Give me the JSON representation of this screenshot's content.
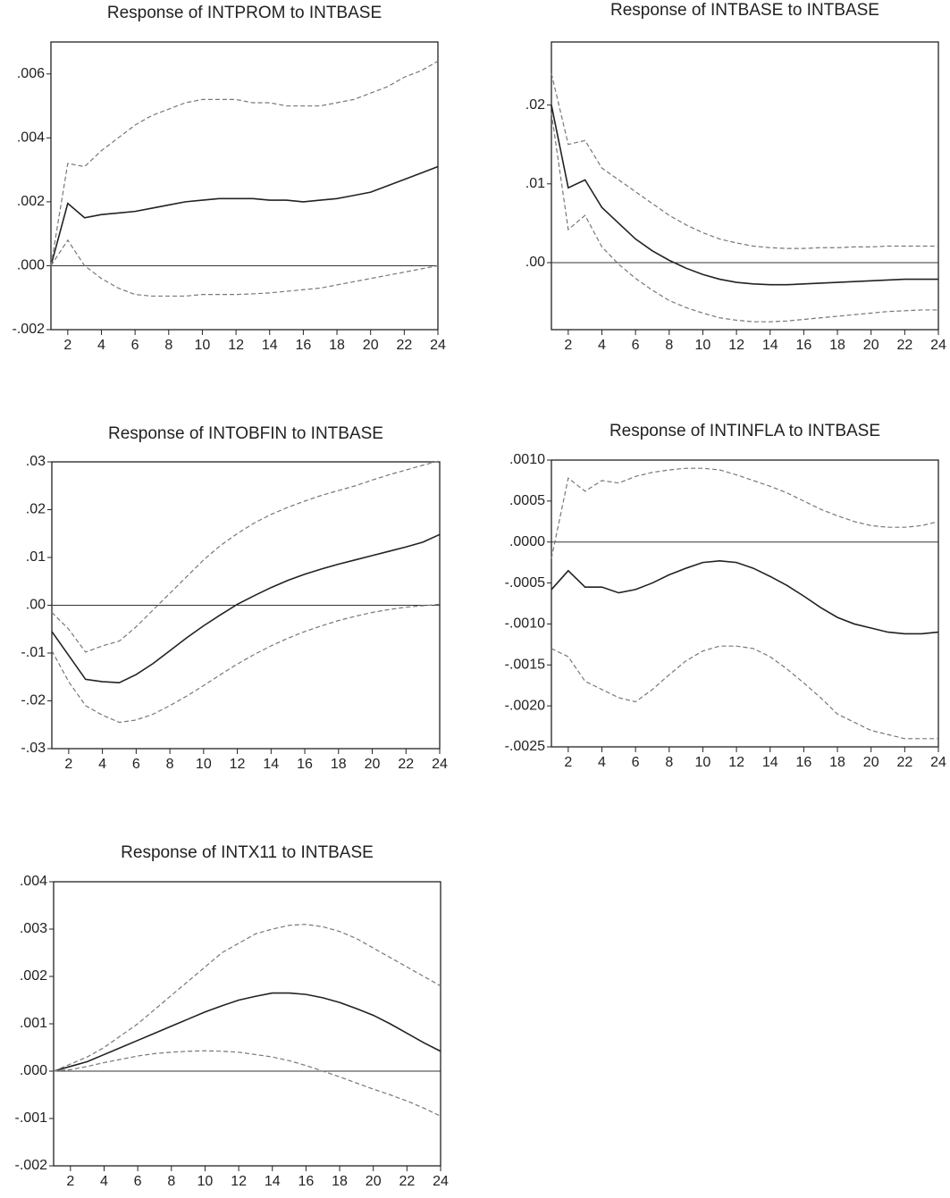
{
  "chart_data": [
    {
      "type": "line",
      "title": "Response of INTPROM to INTBASE",
      "x": [
        1,
        2,
        3,
        4,
        5,
        6,
        7,
        8,
        9,
        10,
        11,
        12,
        13,
        14,
        15,
        16,
        17,
        18,
        19,
        20,
        21,
        22,
        23,
        24
      ],
      "xlim": [
        1,
        24
      ],
      "xticks": [
        2,
        4,
        6,
        8,
        10,
        12,
        14,
        16,
        18,
        20,
        22,
        24
      ],
      "ylim": [
        -0.002,
        0.007
      ],
      "yticks": [
        {
          "value": -0.002,
          "label": "-.002"
        },
        {
          "value": 0,
          "label": ".000"
        },
        {
          "value": 0.002,
          "label": ".002"
        },
        {
          "value": 0.004,
          "label": ".004"
        },
        {
          "value": 0.006,
          "label": ".006"
        }
      ],
      "series": [
        {
          "color": "#222222",
          "style": "solid",
          "values": [
            0,
            0.00195,
            0.0015,
            0.0016,
            0.00165,
            0.0017,
            0.0018,
            0.0019,
            0.002,
            0.00205,
            0.0021,
            0.0021,
            0.0021,
            0.00205,
            0.00205,
            0.002,
            0.00205,
            0.0021,
            0.0022,
            0.0023,
            0.0025,
            0.0027,
            0.0029,
            0.0031
          ]
        },
        {
          "color": "#777777",
          "style": "dashed",
          "values": [
            0,
            0.0032,
            0.0031,
            0.0036,
            0.004,
            0.0044,
            0.0047,
            0.0049,
            0.0051,
            0.0052,
            0.0052,
            0.0052,
            0.0051,
            0.0051,
            0.005,
            0.005,
            0.005,
            0.0051,
            0.0052,
            0.0054,
            0.0056,
            0.0059,
            0.0061,
            0.0064
          ]
        },
        {
          "color": "#777777",
          "style": "dashed",
          "values": [
            0,
            0.0008,
            0,
            -0.0004,
            -0.0007,
            -0.0009,
            -0.00095,
            -0.00095,
            -0.00095,
            -0.0009,
            -0.0009,
            -0.0009,
            -0.00088,
            -0.00085,
            -0.0008,
            -0.00075,
            -0.0007,
            -0.0006,
            -0.0005,
            -0.0004,
            -0.0003,
            -0.0002,
            -0.0001,
            0
          ]
        }
      ]
    },
    {
      "type": "line",
      "title": "Response of INTBASE to INTBASE",
      "x": [
        1,
        2,
        3,
        4,
        5,
        6,
        7,
        8,
        9,
        10,
        11,
        12,
        13,
        14,
        15,
        16,
        17,
        18,
        19,
        20,
        21,
        22,
        23,
        24
      ],
      "xlim": [
        1,
        24
      ],
      "xticks": [
        2,
        4,
        6,
        8,
        10,
        12,
        14,
        16,
        18,
        20,
        22,
        24
      ],
      "ylim": [
        -0.0085,
        0.028
      ],
      "yticks": [
        {
          "value": 0,
          "label": ".00"
        },
        {
          "value": 0.01,
          "label": ".01"
        },
        {
          "value": 0.02,
          "label": ".02"
        }
      ],
      "series": [
        {
          "color": "#222222",
          "style": "solid",
          "values": [
            0.02,
            0.0095,
            0.0105,
            0.007,
            0.005,
            0.003,
            0.0015,
            0.0003,
            -0.0007,
            -0.0015,
            -0.0021,
            -0.0025,
            -0.0027,
            -0.0028,
            -0.0028,
            -0.0027,
            -0.0026,
            -0.0025,
            -0.0024,
            -0.0023,
            -0.0022,
            -0.0021,
            -0.0021,
            -0.0021
          ]
        },
        {
          "color": "#777777",
          "style": "dashed",
          "values": [
            0.024,
            0.015,
            0.0155,
            0.012,
            0.0105,
            0.009,
            0.0075,
            0.006,
            0.0048,
            0.0038,
            0.003,
            0.0025,
            0.0021,
            0.0019,
            0.0018,
            0.0018,
            0.0019,
            0.0019,
            0.002,
            0.002,
            0.0021,
            0.0021,
            0.0021,
            0.0021
          ]
        },
        {
          "color": "#777777",
          "style": "dashed",
          "values": [
            0.019,
            0.0042,
            0.006,
            0.002,
            -0.0002,
            -0.002,
            -0.0035,
            -0.0048,
            -0.0057,
            -0.0064,
            -0.007,
            -0.0073,
            -0.0075,
            -0.0075,
            -0.0074,
            -0.0072,
            -0.007,
            -0.0068,
            -0.0066,
            -0.0064,
            -0.0062,
            -0.0061,
            -0.006,
            -0.006
          ]
        }
      ]
    },
    {
      "type": "line",
      "title": "Response of INTOBFIN to INTBASE",
      "x": [
        1,
        2,
        3,
        4,
        5,
        6,
        7,
        8,
        9,
        10,
        11,
        12,
        13,
        14,
        15,
        16,
        17,
        18,
        19,
        20,
        21,
        22,
        23,
        24
      ],
      "xlim": [
        1,
        24
      ],
      "xticks": [
        2,
        4,
        6,
        8,
        10,
        12,
        14,
        16,
        18,
        20,
        22,
        24
      ],
      "ylim": [
        -0.03,
        0.03
      ],
      "yticks": [
        {
          "value": -0.03,
          "label": "-.03"
        },
        {
          "value": -0.02,
          "label": "-.02"
        },
        {
          "value": -0.01,
          "label": "-.01"
        },
        {
          "value": 0,
          "label": ".00"
        },
        {
          "value": 0.01,
          "label": ".01"
        },
        {
          "value": 0.02,
          "label": ".02"
        },
        {
          "value": 0.03,
          "label": ".03"
        }
      ],
      "series": [
        {
          "color": "#222222",
          "style": "solid",
          "values": [
            -0.0055,
            -0.0105,
            -0.0155,
            -0.016,
            -0.0162,
            -0.0145,
            -0.0122,
            -0.0095,
            -0.0068,
            -0.0043,
            -0.002,
            0.0002,
            0.002,
            0.0037,
            0.0052,
            0.0065,
            0.0076,
            0.0086,
            0.0095,
            0.0104,
            0.0113,
            0.0122,
            0.0132,
            0.0148
          ]
        },
        {
          "color": "#777777",
          "style": "dashed",
          "values": [
            -0.0015,
            -0.005,
            -0.0098,
            -0.0085,
            -0.0075,
            -0.0045,
            -0.001,
            0.0025,
            0.006,
            0.0095,
            0.0125,
            0.015,
            0.0172,
            0.019,
            0.0205,
            0.0218,
            0.023,
            0.024,
            0.025,
            0.0262,
            0.0273,
            0.0283,
            0.0293,
            0.0302
          ]
        },
        {
          "color": "#777777",
          "style": "dashed",
          "values": [
            -0.0095,
            -0.016,
            -0.021,
            -0.023,
            -0.0245,
            -0.024,
            -0.0228,
            -0.021,
            -0.019,
            -0.0168,
            -0.0145,
            -0.0123,
            -0.0103,
            -0.0085,
            -0.0069,
            -0.0055,
            -0.0043,
            -0.0032,
            -0.0023,
            -0.0015,
            -0.0009,
            -0.0004,
            -0.0001,
            0.0002
          ]
        }
      ]
    },
    {
      "type": "line",
      "title": "Response of INTINFLA to INTBASE",
      "x": [
        1,
        2,
        3,
        4,
        5,
        6,
        7,
        8,
        9,
        10,
        11,
        12,
        13,
        14,
        15,
        16,
        17,
        18,
        19,
        20,
        21,
        22,
        23,
        24
      ],
      "xlim": [
        1,
        24
      ],
      "xticks": [
        2,
        4,
        6,
        8,
        10,
        12,
        14,
        16,
        18,
        20,
        22,
        24
      ],
      "ylim": [
        -0.0025,
        0.001
      ],
      "yticks": [
        {
          "value": -0.0025,
          "label": "-.0025"
        },
        {
          "value": -0.002,
          "label": "-.0020"
        },
        {
          "value": -0.0015,
          "label": "-.0015"
        },
        {
          "value": -0.001,
          "label": "-.0010"
        },
        {
          "value": -0.0005,
          "label": "-.0005"
        },
        {
          "value": 0,
          "label": ".0000"
        },
        {
          "value": 0.0005,
          "label": ".0005"
        },
        {
          "value": 0.001,
          "label": ".0010"
        }
      ],
      "series": [
        {
          "color": "#222222",
          "style": "solid",
          "values": [
            -0.00058,
            -0.00035,
            -0.00055,
            -0.00055,
            -0.00062,
            -0.00058,
            -0.0005,
            -0.0004,
            -0.00032,
            -0.00025,
            -0.00023,
            -0.00025,
            -0.00032,
            -0.00042,
            -0.00053,
            -0.00066,
            -0.0008,
            -0.00092,
            -0.001,
            -0.00105,
            -0.0011,
            -0.00112,
            -0.00112,
            -0.0011
          ]
        },
        {
          "color": "#777777",
          "style": "dashed",
          "values": [
            -0.0002,
            0.00078,
            0.00062,
            0.00075,
            0.00072,
            0.0008,
            0.00085,
            0.00088,
            0.0009,
            0.0009,
            0.00088,
            0.00082,
            0.00075,
            0.00068,
            0.0006,
            0.0005,
            0.0004,
            0.00032,
            0.00025,
            0.0002,
            0.00018,
            0.00018,
            0.0002,
            0.00025
          ]
        },
        {
          "color": "#777777",
          "style": "dashed",
          "values": [
            -0.0013,
            -0.0014,
            -0.0017,
            -0.0018,
            -0.0019,
            -0.00195,
            -0.0018,
            -0.00162,
            -0.00145,
            -0.00133,
            -0.00127,
            -0.00127,
            -0.0013,
            -0.0014,
            -0.00155,
            -0.00172,
            -0.0019,
            -0.0021,
            -0.0022,
            -0.0023,
            -0.00235,
            -0.0024,
            -0.0024,
            -0.0024
          ]
        }
      ]
    },
    {
      "type": "line",
      "title": "Response of INTX11 to INTBASE",
      "x": [
        1,
        2,
        3,
        4,
        5,
        6,
        7,
        8,
        9,
        10,
        11,
        12,
        13,
        14,
        15,
        16,
        17,
        18,
        19,
        20,
        21,
        22,
        23,
        24
      ],
      "xlim": [
        1,
        24
      ],
      "xticks": [
        2,
        4,
        6,
        8,
        10,
        12,
        14,
        16,
        18,
        20,
        22,
        24
      ],
      "ylim": [
        -0.002,
        0.004
      ],
      "yticks": [
        {
          "value": -0.002,
          "label": "-.002"
        },
        {
          "value": -0.001,
          "label": "-.001"
        },
        {
          "value": 0,
          "label": ".000"
        },
        {
          "value": 0.001,
          "label": ".001"
        },
        {
          "value": 0.002,
          "label": ".002"
        },
        {
          "value": 0.003,
          "label": ".003"
        },
        {
          "value": 0.004,
          "label": ".004"
        }
      ],
      "series": [
        {
          "color": "#222222",
          "style": "solid",
          "values": [
            0,
            0.0001,
            0.0002,
            0.00035,
            0.0005,
            0.00065,
            0.0008,
            0.00095,
            0.0011,
            0.00125,
            0.00138,
            0.0015,
            0.00158,
            0.00165,
            0.00165,
            0.00162,
            0.00155,
            0.00145,
            0.00132,
            0.00118,
            0.001,
            0.0008,
            0.0006,
            0.00042
          ]
        },
        {
          "color": "#777777",
          "style": "dashed",
          "values": [
            0,
            0.00015,
            0.0003,
            0.0005,
            0.00075,
            0.001,
            0.0013,
            0.0016,
            0.0019,
            0.0022,
            0.0025,
            0.0027,
            0.0029,
            0.003,
            0.00308,
            0.0031,
            0.00305,
            0.00295,
            0.0028,
            0.0026,
            0.0024,
            0.0022,
            0.002,
            0.0018
          ]
        },
        {
          "color": "#777777",
          "style": "dashed",
          "values": [
            0,
            3e-05,
            0.0001,
            0.00018,
            0.00025,
            0.00032,
            0.00037,
            0.0004,
            0.00042,
            0.00043,
            0.00042,
            0.0004,
            0.00035,
            0.0003,
            0.00022,
            0.00012,
            0,
            -0.00012,
            -0.00025,
            -0.00038,
            -0.0005,
            -0.00063,
            -0.00078,
            -0.00095
          ]
        }
      ]
    }
  ]
}
